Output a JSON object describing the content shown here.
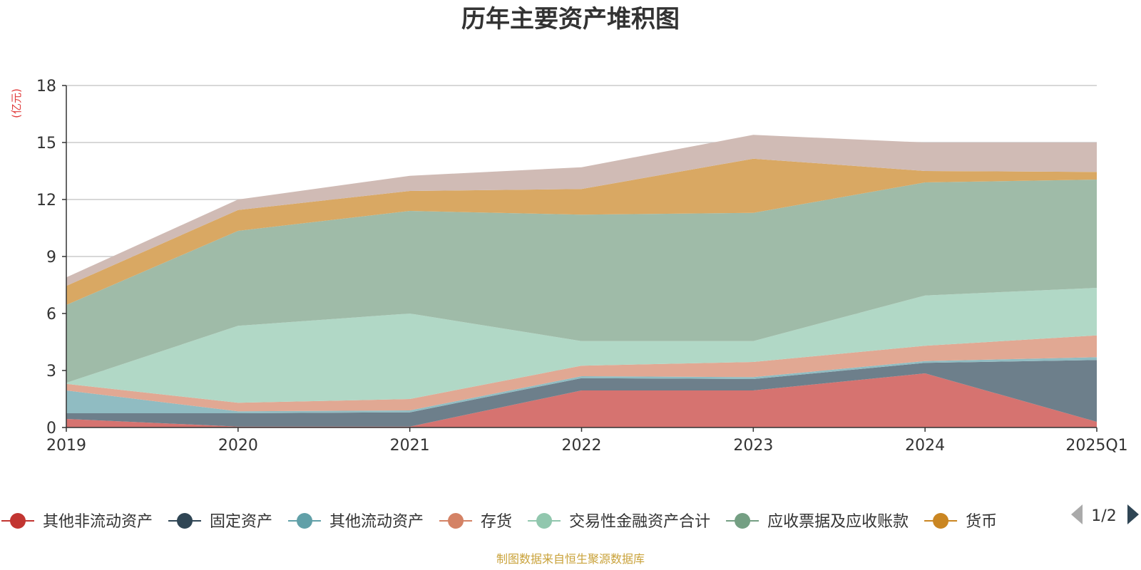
{
  "chart_data": {
    "type": "area",
    "stacked": true,
    "title": "历年主要资产堆积图",
    "unit_label": "(亿元)",
    "x": [
      "2019",
      "2020",
      "2021",
      "2022",
      "2023",
      "2024",
      "2025Q1"
    ],
    "ylim": [
      0,
      18
    ],
    "yticks": [
      0,
      3,
      6,
      9,
      12,
      15,
      18
    ],
    "grid": true,
    "series": [
      {
        "name": "其他非流动资产",
        "color": "#c23531",
        "area_color": "#d67370",
        "values": [
          0.45,
          0.05,
          0.05,
          1.95,
          1.95,
          2.85,
          0.3
        ]
      },
      {
        "name": "固定资产",
        "color": "#2f4554",
        "area_color": "#6d7f8b",
        "values": [
          0.3,
          0.7,
          0.75,
          0.65,
          0.6,
          0.55,
          3.25
        ]
      },
      {
        "name": "其他流动资产",
        "color": "#61a0a8",
        "area_color": "#90bcc2",
        "values": [
          1.2,
          0.1,
          0.1,
          0.1,
          0.1,
          0.1,
          0.15
        ]
      },
      {
        "name": "存货",
        "color": "#d48265",
        "area_color": "#e1a893",
        "values": [
          0.35,
          0.45,
          0.6,
          0.55,
          0.8,
          0.8,
          1.15
        ]
      },
      {
        "name": "交易性金融资产合计",
        "color": "#91c7ae",
        "area_color": "#b1d8c6",
        "values": [
          0.05,
          4.05,
          4.5,
          1.3,
          1.1,
          2.65,
          2.5
        ]
      },
      {
        "name": "应收票据及应收账款",
        "color": "#749f83",
        "area_color": "#9fbba8",
        "values": [
          4.1,
          5.0,
          5.4,
          6.65,
          6.75,
          5.95,
          5.7
        ]
      },
      {
        "name": "货币",
        "color": "#ca8622",
        "area_color": "#d9a863",
        "values": [
          1.0,
          1.1,
          1.05,
          1.35,
          2.85,
          0.6,
          0.4
        ]
      },
      {
        "name": "",
        "color": "#bda29a",
        "area_color": "#d0bbb5",
        "values": [
          0.45,
          0.55,
          0.8,
          1.15,
          1.25,
          1.5,
          1.55
        ]
      }
    ]
  },
  "legend": {
    "page_indicator": "1/2",
    "items": [
      {
        "label": "其他非流动资产",
        "color": "#c23531"
      },
      {
        "label": "固定资产",
        "color": "#2f4554"
      },
      {
        "label": "其他流动资产",
        "color": "#61a0a8"
      },
      {
        "label": "存货",
        "color": "#d48265"
      },
      {
        "label": "交易性金融资产合计",
        "color": "#91c7ae"
      },
      {
        "label": "应收票据及应收账款",
        "color": "#749f83"
      },
      {
        "label": "货币",
        "color": "#ca8622"
      }
    ],
    "prev_color": "#aaaaaa",
    "next_color": "#2f4554"
  },
  "source": "制图数据来自恒生聚源数据库"
}
